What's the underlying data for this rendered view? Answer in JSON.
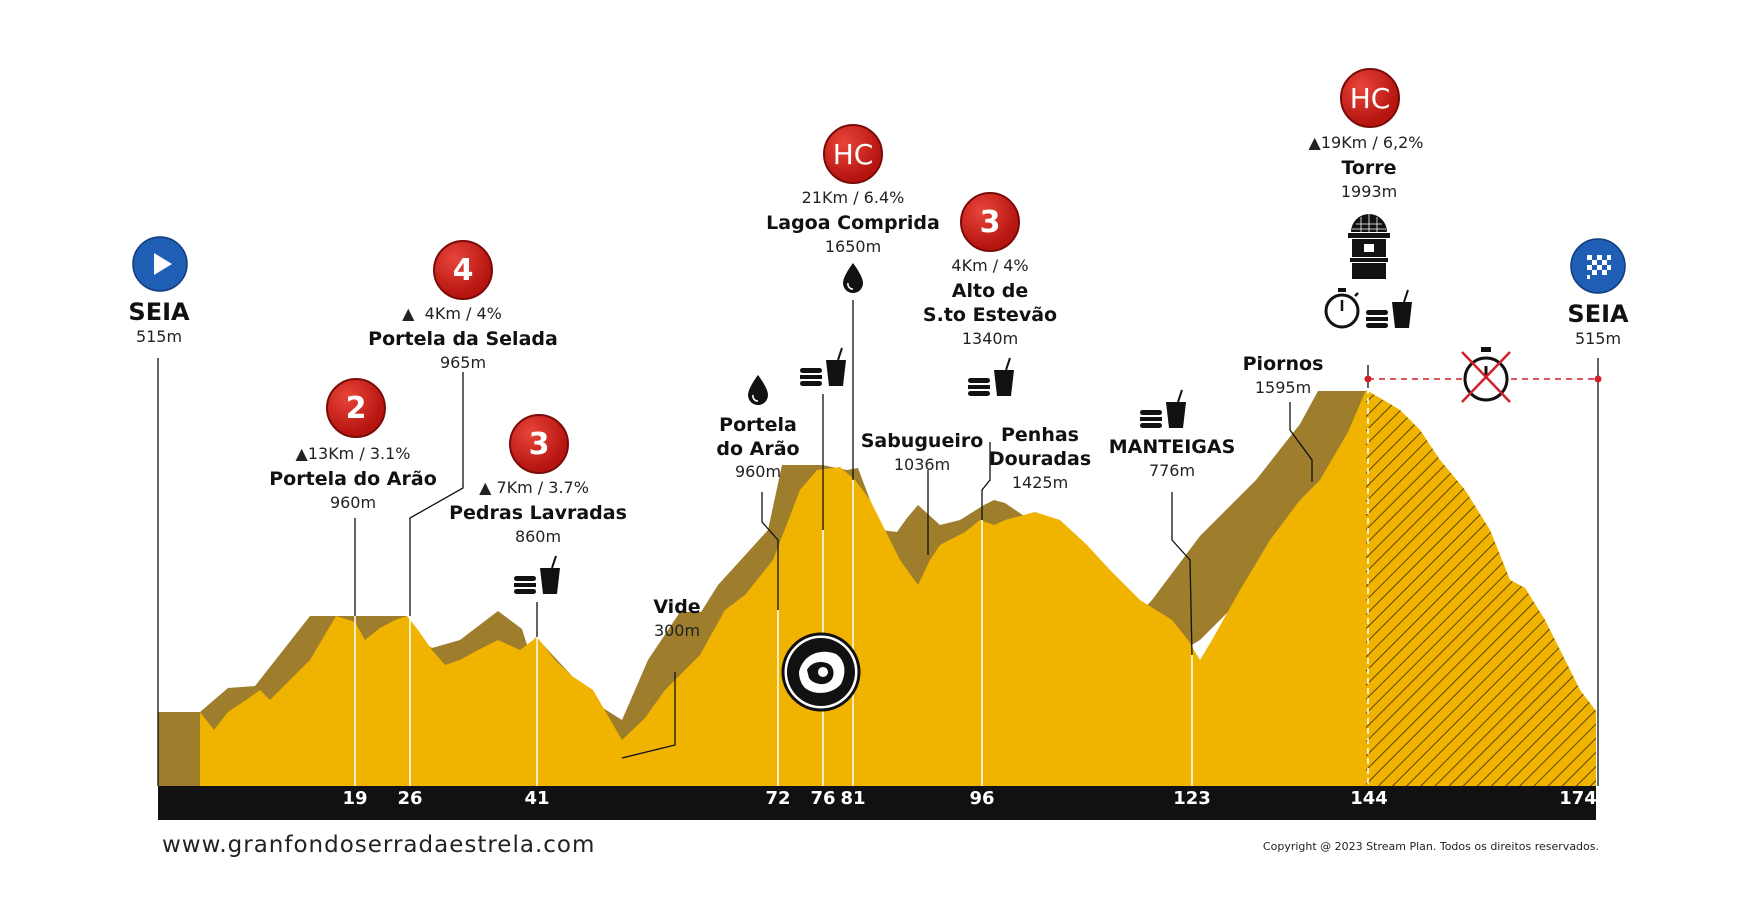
{
  "start": {
    "city": "SEIA",
    "altitude": "515m",
    "icon": "play-icon"
  },
  "finish": {
    "city": "SEIA",
    "altitude": "515m",
    "icon": "checkered-flag-icon"
  },
  "waypoints": [
    {
      "name": "Portela do Arão",
      "altitude": "960m",
      "category": "2",
      "climb": "13Km / 3.1%"
    },
    {
      "name": "Portela da Selada",
      "altitude": "965m",
      "category": "4",
      "climb": "4Km / 4%"
    },
    {
      "name": "Pedras Lavradas",
      "altitude": "860m",
      "category": "3",
      "climb": "7Km / 3.7%"
    },
    {
      "name": "Vide",
      "altitude": "300m"
    },
    {
      "name_line1": "Portela",
      "name_line2": "do Arão",
      "altitude": "960m"
    },
    {
      "name": "Lagoa Comprida",
      "altitude": "1650m",
      "category": "HC",
      "climb": "21Km / 6.4%"
    },
    {
      "name": "Sabugueiro",
      "altitude": "1036m"
    },
    {
      "name_line1": "Alto de",
      "name_line2": "S.to Estevão",
      "altitude": "1340m",
      "category": "3",
      "climb": "4Km / 4%"
    },
    {
      "name_line1": "Penhas",
      "name_line2": "Douradas",
      "altitude": "1425m"
    },
    {
      "name": "MANTEIGAS",
      "altitude": "776m"
    },
    {
      "name": "Piornos",
      "altitude": "1595m"
    },
    {
      "name": "Torre",
      "altitude": "1993m",
      "category": "HC",
      "climb": "19Km / 6,2%"
    }
  ],
  "distance_ticks": [
    "19",
    "26",
    "41",
    "72",
    "76",
    "81",
    "96",
    "123",
    "144",
    "174"
  ],
  "footer": {
    "website": "www.granfondoserradaestrela.com",
    "copyright": "Copyright @ 2023 Stream Plan. Todos os direitos reservados."
  },
  "colors": {
    "profile_fill": "#f0b400",
    "profile_shadow": "#9e7d2c",
    "category_red": "#c9201a",
    "axis": "#111111"
  }
}
